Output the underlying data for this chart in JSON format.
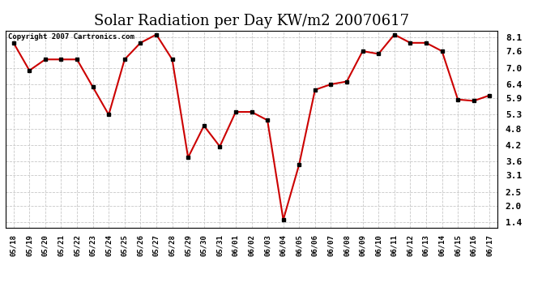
{
  "title": "Solar Radiation per Day KW/m2 20070617",
  "copyright_text": "Copyright 2007 Cartronics.com",
  "dates": [
    "05/18",
    "05/19",
    "05/20",
    "05/21",
    "05/22",
    "05/23",
    "05/24",
    "05/25",
    "05/26",
    "05/27",
    "05/28",
    "05/29",
    "05/30",
    "05/31",
    "06/01",
    "06/02",
    "06/03",
    "06/04",
    "06/05",
    "06/06",
    "06/07",
    "06/08",
    "06/09",
    "06/10",
    "06/11",
    "06/12",
    "06/13",
    "06/14",
    "06/15",
    "06/16",
    "06/17"
  ],
  "values": [
    7.9,
    6.9,
    7.3,
    7.3,
    7.3,
    6.3,
    5.3,
    7.3,
    7.9,
    8.2,
    7.3,
    3.75,
    4.9,
    4.15,
    5.4,
    5.4,
    5.1,
    1.5,
    3.5,
    6.2,
    6.4,
    6.5,
    7.6,
    7.5,
    8.2,
    7.9,
    7.9,
    7.6,
    5.85,
    5.8,
    6.0
  ],
  "line_color": "#cc0000",
  "marker_color": "#000000",
  "bg_color": "#ffffff",
  "grid_color": "#c8c8c8",
  "yticks": [
    1.4,
    2.0,
    2.5,
    3.1,
    3.6,
    4.2,
    4.8,
    5.3,
    5.9,
    6.4,
    7.0,
    7.6,
    8.1
  ],
  "ylim": [
    1.2,
    8.35
  ],
  "title_fontsize": 13
}
